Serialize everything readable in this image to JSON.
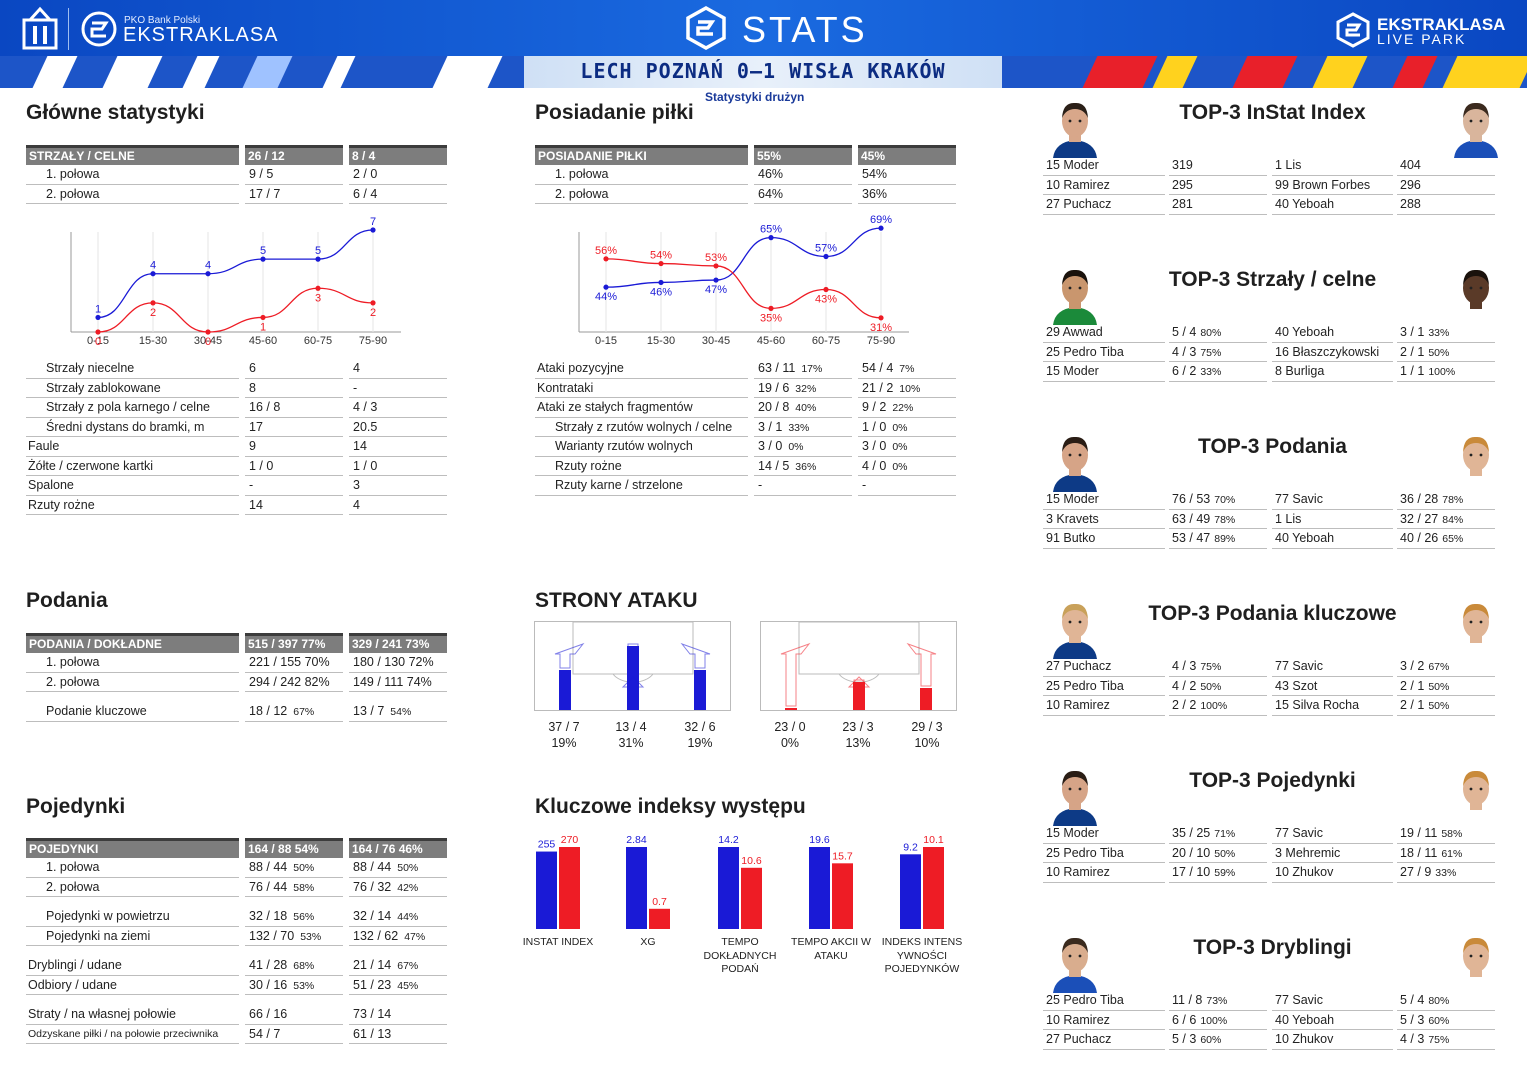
{
  "header": {
    "pko_label": "PKO Bank Polski",
    "brand": "EKSTRAKLASA",
    "stats_word": "STATS",
    "right_brand_line1": "EKSTRAKLASA",
    "right_brand_line2": "LIVE PARK",
    "match_title": "LECH POZNAŃ 0–1 WISŁA KRAKÓW",
    "subtitle": "Statystyki drużyn"
  },
  "colors": {
    "home": "#1a1ad6",
    "away": "#ee1c25",
    "header_bg": "#7d7d7d"
  },
  "main_stats": {
    "title": "Główne statystyki",
    "header": [
      "STRZAŁY / CELNE",
      "26 / 12",
      "8 / 4"
    ],
    "rows": [
      {
        "label": "1. połowa",
        "home": "9 / 5",
        "away": "2 / 0",
        "indent": true
      },
      {
        "label": "2. połowa",
        "home": "17 / 7",
        "away": "6 / 4",
        "indent": true
      }
    ],
    "rows2": [
      {
        "label": "Strzały niecelne",
        "home": "6",
        "away": "4",
        "indent": true
      },
      {
        "label": "Strzały zablokowane",
        "home": "8",
        "away": "-",
        "indent": true
      },
      {
        "label": "Strzały z pola karnego / celne",
        "home": "16 / 8",
        "away": "4 / 3",
        "indent": true
      },
      {
        "label": "Średni dystans do bramki, m",
        "home": "17",
        "away": "20.5",
        "indent": true
      },
      {
        "label": "Faule",
        "home": "9",
        "away": "14",
        "indent": false
      },
      {
        "label": "Żółte / czerwone kartki",
        "home": "1 / 0",
        "away": "1 / 0",
        "indent": false
      },
      {
        "label": "Spalone",
        "home": "-",
        "away": "3",
        "indent": false
      },
      {
        "label": "Rzuty rożne",
        "home": "14",
        "away": "4",
        "indent": false
      }
    ]
  },
  "shots_chart": {
    "chart_data": {
      "type": "line",
      "categories": [
        "0-15",
        "15-30",
        "30-45",
        "45-60",
        "60-75",
        "75-90"
      ],
      "series": [
        {
          "values": [
            1,
            4,
            4,
            5,
            5,
            7
          ],
          "color": "#1a1ad6"
        },
        {
          "values": [
            0,
            2,
            0,
            1,
            3,
            2
          ],
          "color": "#ee1c25"
        }
      ],
      "ylim": [
        0,
        7
      ]
    }
  },
  "possession": {
    "title": "Posiadanie piłki",
    "header": [
      "POSIADANIE PIŁKI",
      "55%",
      "45%"
    ],
    "rows": [
      {
        "label": "1. połowa",
        "home": "46%",
        "away": "54%",
        "indent": true
      },
      {
        "label": "2. połowa",
        "home": "64%",
        "away": "36%",
        "indent": true
      }
    ],
    "rows2": [
      {
        "label": "Ataki pozycyjne",
        "home": "63 / 11",
        "hp": "17%",
        "away": "54 / 4",
        "ap": "7%",
        "indent": false
      },
      {
        "label": "Kontrataki",
        "home": "19 / 6",
        "hp": "32%",
        "away": "21 / 2",
        "ap": "10%",
        "indent": false
      },
      {
        "label": "Ataki ze stałych fragmentów",
        "home": "20 / 8",
        "hp": "40%",
        "away": "9 / 2",
        "ap": "22%",
        "indent": false
      },
      {
        "label": "Strzały z rzutów wolnych / celne",
        "home": "3 / 1",
        "hp": "33%",
        "away": "1 / 0",
        "ap": "0%",
        "indent": true
      },
      {
        "label": "Warianty rzutów wolnych",
        "home": "3 / 0",
        "hp": "0%",
        "away": "3 / 0",
        "ap": "0%",
        "indent": true
      },
      {
        "label": "Rzuty rożne",
        "home": "14 / 5",
        "hp": "36%",
        "away": "4 / 0",
        "ap": "0%",
        "indent": true
      },
      {
        "label": "Rzuty karne / strzelone",
        "home": "-",
        "hp": "",
        "away": "-",
        "ap": "",
        "indent": true
      }
    ]
  },
  "possession_chart": {
    "chart_data": {
      "type": "line",
      "categories": [
        "0-15",
        "15-30",
        "30-45",
        "45-60",
        "60-75",
        "75-90"
      ],
      "series": [
        {
          "values": [
            44,
            46,
            47,
            65,
            57,
            69
          ],
          "color": "#1a1ad6"
        },
        {
          "values": [
            56,
            54,
            53,
            35,
            43,
            31
          ],
          "color": "#ee1c25"
        }
      ],
      "ylim": [
        25,
        75
      ],
      "value_suffix": "%"
    }
  },
  "passes": {
    "title": "Podania",
    "header": [
      "PODANIA / DOKŁADNE",
      "515 / 397 77%",
      "329 / 241 73%"
    ],
    "rows": [
      {
        "label": "1. połowa",
        "home": "221 / 155 70%",
        "hp": "",
        "away": "180 / 130 72%",
        "ap": "",
        "indent": true
      },
      {
        "label": "2. połowa",
        "home": "294 / 242 82%",
        "hp": "",
        "away": "149 / 111 74%",
        "ap": "",
        "indent": true
      }
    ],
    "rows2": [
      {
        "label": "Podanie kluczowe",
        "home": "18 / 12",
        "hp": "67%",
        "away": "13 / 7",
        "ap": "54%",
        "indent": true
      }
    ]
  },
  "attack_sides": {
    "title": "STRONY ATAKU",
    "home": [
      {
        "value": "37 / 7",
        "pct": "19%",
        "share": 0.19
      },
      {
        "value": "13 / 4",
        "pct": "31%",
        "share": 0.31
      },
      {
        "value": "32 / 6",
        "pct": "19%",
        "share": 0.19
      }
    ],
    "away": [
      {
        "value": "23 / 0",
        "pct": "0%",
        "share": 0.0
      },
      {
        "value": "23 / 3",
        "pct": "13%",
        "share": 0.13
      },
      {
        "value": "29 / 3",
        "pct": "10%",
        "share": 0.1
      }
    ]
  },
  "duels": {
    "title": "Pojedynki",
    "header": [
      "POJEDYNKI",
      "164 / 88 54%",
      "164 / 76 46%"
    ],
    "rows": [
      {
        "label": "1. połowa",
        "home": "88 / 44",
        "hp": "50%",
        "away": "88 / 44",
        "ap": "50%",
        "indent": true
      },
      {
        "label": "2. połowa",
        "home": "76 / 44",
        "hp": "58%",
        "away": "76 / 32",
        "ap": "42%",
        "indent": true
      }
    ],
    "rows2": [
      {
        "label": "Pojedynki w powietrzu",
        "home": "32 / 18",
        "hp": "56%",
        "away": "32 / 14",
        "ap": "44%",
        "indent": true
      },
      {
        "label": "Pojedynki na ziemi",
        "home": "132 / 70",
        "hp": "53%",
        "away": "132 / 62",
        "ap": "47%",
        "indent": true
      }
    ],
    "rows3": [
      {
        "label": "Dryblingi / udane",
        "home": "41 / 28",
        "hp": "68%",
        "away": "21 / 14",
        "ap": "67%",
        "indent": false
      },
      {
        "label": "Odbiory / udane",
        "home": "30 / 16",
        "hp": "53%",
        "away": "51 / 23",
        "ap": "45%",
        "indent": false
      }
    ],
    "rows4": [
      {
        "label": "Straty / na własnej połowie",
        "home": "66 / 16",
        "hp": "",
        "away": "73 / 14",
        "ap": "",
        "indent": false
      },
      {
        "label": "Odzyskane piłki / na połowie przeciwnika",
        "home": "54 / 7",
        "hp": "",
        "away": "61 / 13",
        "ap": "",
        "indent": false,
        "small": true
      }
    ]
  },
  "key_indices": {
    "title": "Kluczowe indeksy występu",
    "chart_data": {
      "type": "bar",
      "categories": [
        "INSTAT INDEX",
        "XG",
        "TEMPO DOKŁADNYCH PODAŃ",
        "TEMPO AKCII W ATAKU",
        "INDEKS INTENSYWNOŚCI POJEDYNKÓW"
      ],
      "label_lines": [
        [
          "INSTAT INDEX"
        ],
        [
          "XG"
        ],
        [
          "TEMPO",
          "DOKŁADNYCH",
          "PODAŃ"
        ],
        [
          "TEMPO AKCII W",
          "ATAKU"
        ],
        [
          "INDEKS INTENS",
          "YWNOŚCI",
          "POJEDYNKÓW"
        ]
      ],
      "series": [
        {
          "values": [
            255,
            2.84,
            14.2,
            19.6,
            9.2
          ],
          "labels": [
            "255",
            "2.84",
            "14.2",
            "19.6",
            "9.2"
          ],
          "color": "#1a1ad6"
        },
        {
          "values": [
            270,
            0.7,
            10.6,
            15.7,
            10.1
          ],
          "labels": [
            "270",
            "0.7",
            "10.6",
            "15.7",
            "10.1"
          ],
          "color": "#ee1c25"
        }
      ]
    }
  },
  "tops": [
    {
      "title": "TOP-3 InStat Index",
      "left": [
        {
          "name": "15 Moder",
          "value": "319",
          "pct": ""
        },
        {
          "name": "10 Ramirez",
          "value": "295",
          "pct": ""
        },
        {
          "name": "27 Puchacz",
          "value": "281",
          "pct": ""
        }
      ],
      "right": [
        {
          "name": "1  Lis",
          "value": "404",
          "pct": ""
        },
        {
          "name": "99 Brown Forbes",
          "value": "296",
          "pct": ""
        },
        {
          "name": "40 Yeboah",
          "value": "288",
          "pct": ""
        }
      ]
    },
    {
      "title": "TOP-3 Strzały / celne",
      "left": [
        {
          "name": "29 Awwad",
          "value": "5 / 4",
          "pct": "80%"
        },
        {
          "name": "25 Pedro Tiba",
          "value": "4 / 3",
          "pct": "75%"
        },
        {
          "name": "15 Moder",
          "value": "6 / 2",
          "pct": "33%"
        }
      ],
      "right": [
        {
          "name": "40 Yeboah",
          "value": "3 / 1",
          "pct": "33%"
        },
        {
          "name": "16 Błaszczykowski",
          "value": "2 / 1",
          "pct": "50%"
        },
        {
          "name": "8  Burliga",
          "value": "1 / 1",
          "pct": "100%"
        }
      ]
    },
    {
      "title": "TOP-3 Podania",
      "left": [
        {
          "name": "15 Moder",
          "value": "76 / 53",
          "pct": "70%"
        },
        {
          "name": "3  Kravets",
          "value": "63 / 49",
          "pct": "78%"
        },
        {
          "name": "91 Butko",
          "value": "53 / 47",
          "pct": "89%"
        }
      ],
      "right": [
        {
          "name": "77 Savic",
          "value": "36 / 28",
          "pct": "78%"
        },
        {
          "name": "1  Lis",
          "value": "32 / 27",
          "pct": "84%"
        },
        {
          "name": "40 Yeboah",
          "value": "40 / 26",
          "pct": "65%"
        }
      ]
    },
    {
      "title": "TOP-3 Podania kluczowe",
      "left": [
        {
          "name": "27 Puchacz",
          "value": "4 / 3",
          "pct": "75%"
        },
        {
          "name": "25 Pedro Tiba",
          "value": "4 / 2",
          "pct": "50%"
        },
        {
          "name": "10 Ramirez",
          "value": "2 / 2",
          "pct": "100%"
        }
      ],
      "right": [
        {
          "name": "77 Savic",
          "value": "3 / 2",
          "pct": "67%"
        },
        {
          "name": "43 Szot",
          "value": "2 / 1",
          "pct": "50%"
        },
        {
          "name": "15 Silva Rocha",
          "value": "2 / 1",
          "pct": "50%"
        }
      ]
    },
    {
      "title": "TOP-3 Pojedynki",
      "left": [
        {
          "name": "15 Moder",
          "value": "35 / 25",
          "pct": "71%"
        },
        {
          "name": "25 Pedro Tiba",
          "value": "20 / 10",
          "pct": "50%"
        },
        {
          "name": "10 Ramirez",
          "value": "17 / 10",
          "pct": "59%"
        }
      ],
      "right": [
        {
          "name": "77 Savic",
          "value": "19 / 11",
          "pct": "58%"
        },
        {
          "name": "3  Mehremic",
          "value": "18 / 11",
          "pct": "61%"
        },
        {
          "name": "10 Zhukov",
          "value": "27 / 9",
          "pct": "33%"
        }
      ]
    },
    {
      "title": "TOP-3 Dryblingi",
      "left": [
        {
          "name": "25 Pedro Tiba",
          "value": "11 / 8",
          "pct": "73%"
        },
        {
          "name": "10 Ramirez",
          "value": "6 / 6",
          "pct": "100%"
        },
        {
          "name": "27 Puchacz",
          "value": "5 / 3",
          "pct": "60%"
        }
      ],
      "right": [
        {
          "name": "77 Savic",
          "value": "5 / 4",
          "pct": "80%"
        },
        {
          "name": "40 Yeboah",
          "value": "5 / 3",
          "pct": "60%"
        },
        {
          "name": "10 Zhukov",
          "value": "4 / 3",
          "pct": "75%"
        }
      ]
    }
  ]
}
